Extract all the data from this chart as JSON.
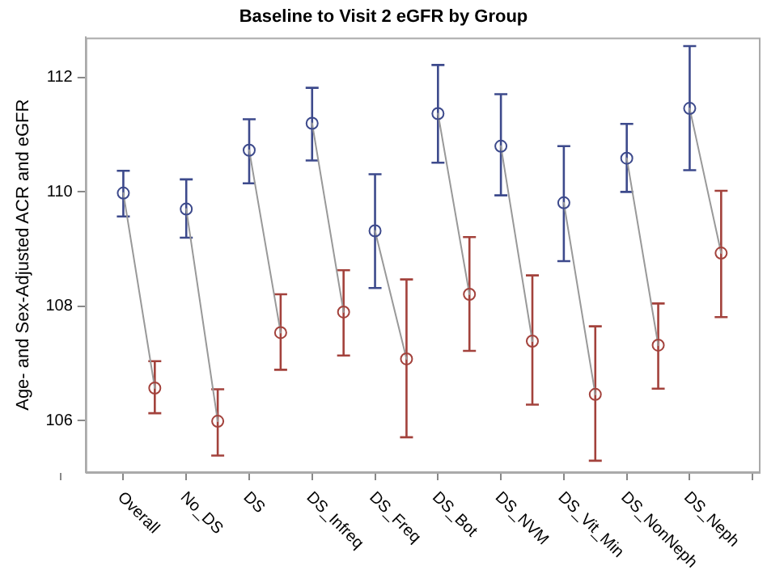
{
  "chart_data": {
    "type": "scatter",
    "title": "Baseline to Visit 2 eGFR by Group",
    "ylabel": "Age- and Sex-Adjusted ACR and eGFR",
    "categories": [
      "Overall",
      null,
      "No_DS",
      null,
      "DS",
      null,
      "DS_Infreq",
      null,
      "DS_Freq",
      null,
      "DS_Bot",
      null,
      "DS_NVM",
      null,
      "DS_Vit_Min",
      null,
      "DS_NonNeph",
      null,
      "DS_Neph",
      null
    ],
    "series": [
      {
        "color": "#3d4a8c",
        "values": [
          109.98,
          null,
          109.7,
          null,
          110.73,
          null,
          111.2,
          null,
          109.32,
          null,
          111.37,
          null,
          110.8,
          null,
          109.81,
          null,
          110.59,
          null,
          111.46,
          null
        ],
        "errors": [
          [
            109.57,
            110.37
          ],
          null,
          [
            109.2,
            110.22
          ],
          null,
          [
            110.15,
            111.27
          ],
          null,
          [
            110.55,
            111.82
          ],
          null,
          [
            108.32,
            110.31
          ],
          null,
          [
            110.51,
            112.22
          ],
          null,
          [
            109.94,
            111.71
          ],
          null,
          [
            108.79,
            110.8
          ],
          null,
          [
            110.0,
            111.19
          ],
          null,
          [
            110.38,
            112.55
          ],
          null
        ]
      },
      {
        "type": "line",
        "color": "#999999",
        "marker": "none",
        "values": [
          109.98,
          106.57,
          null,
          null,
          null,
          null,
          null,
          null,
          null,
          null,
          null,
          null,
          null,
          null,
          null,
          null,
          null,
          null,
          null,
          null
        ]
      },
      {
        "type": "line",
        "color": "#999999",
        "marker": "none",
        "values": [
          null,
          null,
          109.7,
          105.99,
          null,
          null,
          null,
          null,
          null,
          null,
          null,
          null,
          null,
          null,
          null,
          null,
          null,
          null,
          null,
          null
        ]
      },
      {
        "type": "line",
        "color": "#999999",
        "marker": "none",
        "values": [
          null,
          null,
          null,
          null,
          110.73,
          107.54,
          null,
          null,
          null,
          null,
          null,
          null,
          null,
          null,
          null,
          null,
          null,
          null,
          null,
          null
        ]
      },
      {
        "type": "line",
        "color": "#999999",
        "marker": "none",
        "values": [
          null,
          null,
          null,
          null,
          null,
          null,
          111.2,
          107.9,
          null,
          null,
          null,
          null,
          null,
          null,
          null,
          null,
          null,
          null,
          null,
          null
        ]
      },
      {
        "type": "line",
        "color": "#999999",
        "marker": "none",
        "values": [
          null,
          null,
          null,
          null,
          null,
          null,
          null,
          null,
          109.32,
          107.08,
          null,
          null,
          null,
          null,
          null,
          null,
          null,
          null,
          null,
          null
        ]
      },
      {
        "type": "line",
        "color": "#999999",
        "marker": "none",
        "values": [
          null,
          null,
          null,
          null,
          null,
          null,
          null,
          null,
          null,
          null,
          111.37,
          108.21,
          null,
          null,
          null,
          null,
          null,
          null,
          null,
          null
        ]
      },
      {
        "type": "line",
        "color": "#999999",
        "marker": "none",
        "values": [
          null,
          null,
          null,
          null,
          null,
          null,
          null,
          null,
          null,
          null,
          null,
          null,
          110.8,
          107.39,
          null,
          null,
          null,
          null,
          null,
          null
        ]
      },
      {
        "type": "line",
        "color": "#999999",
        "marker": "none",
        "values": [
          null,
          null,
          null,
          null,
          null,
          null,
          null,
          null,
          null,
          null,
          null,
          null,
          null,
          null,
          109.81,
          106.46,
          null,
          null,
          null,
          null
        ]
      },
      {
        "type": "line",
        "color": "#999999",
        "marker": "none",
        "values": [
          null,
          null,
          null,
          null,
          null,
          null,
          null,
          null,
          null,
          null,
          null,
          null,
          null,
          null,
          null,
          null,
          110.59,
          107.32,
          null,
          null
        ]
      },
      {
        "type": "line",
        "color": "#999999",
        "marker": "none",
        "values": [
          null,
          null,
          null,
          null,
          null,
          null,
          null,
          null,
          null,
          null,
          null,
          null,
          null,
          null,
          null,
          null,
          null,
          null,
          111.46,
          108.93
        ]
      },
      {
        "color": "#a3423c",
        "values": [
          null,
          106.57,
          null,
          105.99,
          null,
          107.54,
          null,
          107.9,
          null,
          107.08,
          null,
          108.21,
          null,
          107.39,
          null,
          106.46,
          null,
          107.32,
          null,
          108.93
        ],
        "errors": [
          null,
          [
            106.13,
            107.04
          ],
          null,
          [
            105.39,
            106.55
          ],
          null,
          [
            106.89,
            108.21
          ],
          null,
          [
            107.14,
            108.63
          ],
          null,
          [
            105.71,
            108.47
          ],
          null,
          [
            107.22,
            109.21
          ],
          null,
          [
            106.28,
            108.54
          ],
          null,
          [
            105.3,
            107.65
          ],
          null,
          [
            106.56,
            108.05
          ],
          null,
          [
            107.81,
            110.02
          ]
        ]
      }
    ],
    "ylim": [
      105.1,
      112.7
    ],
    "yticks": [
      106,
      108,
      110,
      112
    ],
    "grid": false,
    "legend": false,
    "marker": "circle"
  }
}
